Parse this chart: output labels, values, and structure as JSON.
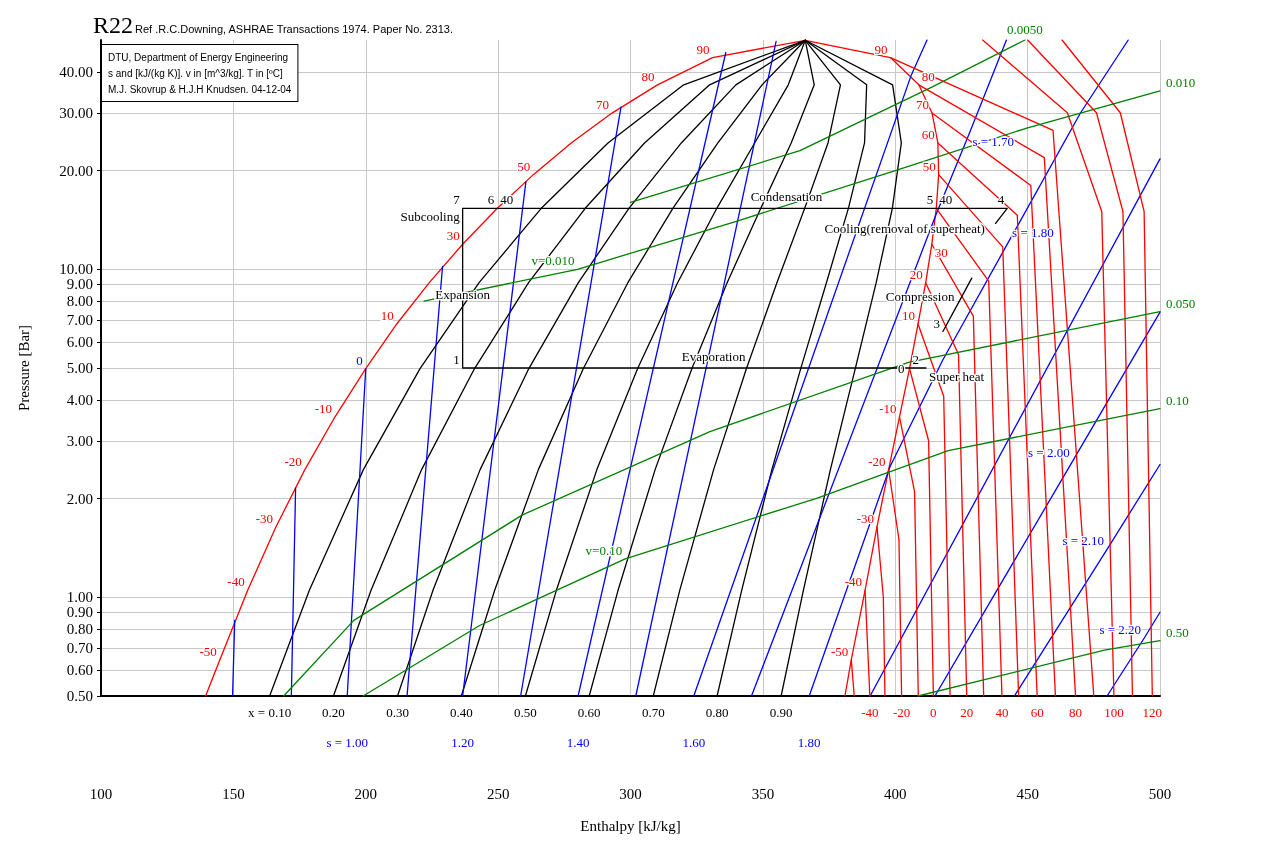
{
  "chart_data": {
    "type": "line",
    "title": "R22",
    "subtitle": "Ref .R.C.Downing, ASHRAE Transactions 1974. Paper No. 2313.",
    "xlabel": "Enthalpy [kJ/kg]",
    "ylabel": "Pressure [Bar]",
    "log": "y",
    "grid": true,
    "xlim": [
      100,
      500
    ],
    "xticks": [
      100,
      150,
      200,
      250,
      300,
      350,
      400,
      450,
      500
    ],
    "ylim": [
      0.5,
      50
    ],
    "yticks": [
      {
        "value": 0.5,
        "label": "0.50"
      },
      {
        "value": 0.6,
        "label": "0.60"
      },
      {
        "value": 0.7,
        "label": "0.70"
      },
      {
        "value": 0.8,
        "label": "0.80"
      },
      {
        "value": 0.9,
        "label": "0.90"
      },
      {
        "value": 1,
        "label": "1.00"
      },
      {
        "value": 2,
        "label": "2.00"
      },
      {
        "value": 3,
        "label": "3.00"
      },
      {
        "value": 4,
        "label": "4.00"
      },
      {
        "value": 5,
        "label": "5.00"
      },
      {
        "value": 6,
        "label": "6.00"
      },
      {
        "value": 7,
        "label": "7.00"
      },
      {
        "value": 8,
        "label": "8.00"
      },
      {
        "value": 9,
        "label": "9.00"
      },
      {
        "value": 10,
        "label": "10.00"
      },
      {
        "value": 20,
        "label": "20.00"
      },
      {
        "value": 30,
        "label": "30.00"
      },
      {
        "value": 40,
        "label": "40.00"
      }
    ],
    "series": [
      {
        "color": "#ff0000",
        "x": [
          139.5,
          144.9,
          155.4,
          166.1,
          177.0,
          188.4,
          200.0,
          211.7,
          224.0,
          236.6,
          249.7,
          263.3,
          277.6,
          293.0,
          310.2,
          331.0,
          366,
          398.2,
          408.9,
          413.9,
          416.1,
          416.4,
          415.5,
          413.8,
          411.5,
          408.6,
          405.4,
          401.6,
          397.5,
          393.1,
          388.6,
          383.4,
          381.0
        ],
        "values": [
          0.5,
          0.645,
          1.05,
          1.64,
          2.45,
          3.55,
          4.98,
          6.81,
          9.1,
          11.92,
          15.34,
          19.43,
          24.27,
          29.93,
          36.5,
          44.2,
          49.9,
          44.2,
          36.5,
          29.93,
          24.27,
          19.43,
          15.34,
          11.92,
          9.1,
          6.81,
          4.98,
          3.55,
          2.45,
          1.64,
          1.05,
          0.645,
          0.5
        ]
      },
      {
        "color": "#000000",
        "x": [
          163.7,
          178.7,
          199.1,
          220.5,
          242.8,
          266.3,
          291.5,
          320.1,
          366
        ],
        "values": [
          0.5,
          1.05,
          2.45,
          4.98,
          9.1,
          15.34,
          24.27,
          36.5,
          49.9
        ]
      },
      {
        "color": "#000000",
        "x": [
          187.8,
          202.0,
          221.1,
          241.1,
          261.5,
          282.9,
          305.3,
          329.9,
          366
        ],
        "values": [
          0.5,
          1.05,
          2.45,
          4.98,
          9.1,
          15.34,
          24.27,
          36.5,
          49.9
        ]
      },
      {
        "color": "#000000",
        "x": [
          212.0,
          225.4,
          243.2,
          261.6,
          280.3,
          299.4,
          319.2,
          339.8,
          366
        ],
        "values": [
          0.5,
          1.05,
          2.45,
          4.98,
          9.1,
          15.34,
          24.27,
          36.5,
          49.9
        ]
      },
      {
        "color": "#000000",
        "x": [
          236.1,
          248.7,
          265.2,
          282.2,
          299.0,
          316.0,
          333.0,
          349.7,
          366
        ],
        "values": [
          0.5,
          1.05,
          2.45,
          4.98,
          9.1,
          15.34,
          24.27,
          36.5,
          49.9
        ]
      },
      {
        "color": "#000000",
        "x": [
          260.3,
          272.0,
          287.3,
          302.7,
          317.8,
          332.6,
          346.9,
          359.6,
          366
        ],
        "values": [
          0.5,
          1.05,
          2.45,
          4.98,
          9.1,
          15.34,
          24.27,
          36.5,
          49.9
        ]
      },
      {
        "color": "#000000",
        "x": [
          284.4,
          295.3,
          309.3,
          323.2,
          336.5,
          349.2,
          360.7,
          369.4,
          366
        ],
        "values": [
          0.5,
          1.05,
          2.45,
          4.98,
          9.1,
          15.34,
          24.27,
          36.5,
          49.9
        ]
      },
      {
        "color": "#000000",
        "x": [
          308.6,
          318.6,
          331.4,
          343.8,
          355.3,
          365.8,
          374.6,
          379.3,
          366
        ],
        "values": [
          0.5,
          1.05,
          2.45,
          4.98,
          9.1,
          15.34,
          24.27,
          36.5,
          49.9
        ]
      },
      {
        "color": "#000000",
        "x": [
          332.7,
          342.0,
          353.4,
          364.3,
          374.0,
          382.3,
          388.4,
          389.2,
          366
        ],
        "values": [
          0.5,
          1.05,
          2.45,
          4.98,
          9.1,
          15.34,
          24.27,
          36.5,
          49.9
        ]
      },
      {
        "color": "#000000",
        "x": [
          356.9,
          365.3,
          375.5,
          384.9,
          392.8,
          398.9,
          402.3,
          399.0,
          366
        ],
        "values": [
          0.5,
          1.05,
          2.45,
          4.98,
          9.1,
          15.34,
          24.27,
          36.5,
          49.9
        ]
      },
      {
        "color": "#0000ff",
        "x": [
          149.7,
          150.5
        ],
        "values": [
          0.5,
          0.85
        ]
      },
      {
        "color": "#0000ff",
        "x": [
          171.9,
          173.5
        ],
        "values": [
          0.5,
          2.15
        ]
      },
      {
        "color": "#0000ff",
        "x": [
          193,
          200
        ],
        "values": [
          0.5,
          4.98
        ]
      },
      {
        "color": "#0000ff",
        "x": [
          215.6,
          229
        ],
        "values": [
          0.5,
          10.2
        ]
      },
      {
        "color": "#0000ff",
        "x": [
          236.6,
          260.5
        ],
        "values": [
          0.5,
          18.5
        ]
      },
      {
        "color": "#0000ff",
        "x": [
          258.5,
          296.4
        ],
        "values": [
          0.5,
          31.2
        ]
      },
      {
        "color": "#0000ff",
        "x": [
          280.2,
          336
        ],
        "values": [
          0.5,
          45.8
        ]
      },
      {
        "color": "#0000ff",
        "x": [
          302,
          355
        ],
        "values": [
          0.5,
          49.5
        ]
      },
      {
        "color": "#0000ff",
        "x": [
          323.9,
          406,
          412
        ],
        "values": [
          0.5,
          39,
          50
        ]
      },
      {
        "color": "#0000ff",
        "x": [
          345.7,
          415.3,
          428,
          442
        ],
        "values": [
          0.5,
          14.6,
          26,
          50
        ]
      },
      {
        "color": "#0000ff",
        "x": [
          367.5,
          398,
          418,
          443,
          470,
          488
        ],
        "values": [
          0.5,
          2.5,
          5.3,
          12.2,
          30,
          50
        ]
      },
      {
        "color": "#0000ff",
        "x": [
          390.5,
          500
        ],
        "values": [
          0.5,
          21.7
        ]
      },
      {
        "color": "#0000ff",
        "x": [
          415,
          467,
          500
        ],
        "values": [
          0.5,
          2.6,
          7.4
        ]
      },
      {
        "color": "#0000ff",
        "x": [
          445,
          480,
          500
        ],
        "values": [
          0.5,
          1.4,
          2.54
        ]
      },
      {
        "color": "#0000ff",
        "x": [
          480,
          494,
          500
        ],
        "values": [
          0.5,
          0.75,
          0.9
        ]
      },
      {
        "color": "#ff0000",
        "x": [
          384.5,
          383.4
        ],
        "values": [
          0.5,
          0.645
        ]
      },
      {
        "color": "#ff0000",
        "x": [
          390.4,
          388.6
        ],
        "values": [
          0.5,
          1.05
        ]
      },
      {
        "color": "#ff0000",
        "x": [
          396.1,
          395.5,
          393.1
        ],
        "values": [
          0.5,
          1.0,
          1.64
        ]
      },
      {
        "color": "#ff0000",
        "x": [
          402.4,
          401.4,
          397.5
        ],
        "values": [
          0.5,
          1.5,
          2.45
        ]
      },
      {
        "color": "#ff0000",
        "x": [
          408.7,
          407.3,
          401.6
        ],
        "values": [
          0.5,
          2.1,
          3.55
        ]
      },
      {
        "color": "#ff0000",
        "x": [
          414.4,
          412.6,
          405.4
        ],
        "values": [
          0.5,
          3.0,
          4.98
        ]
      },
      {
        "color": "#ff0000",
        "x": [
          420.7,
          418.3,
          408.6
        ],
        "values": [
          0.5,
          4.1,
          6.81
        ]
      },
      {
        "color": "#ff0000",
        "x": [
          427.0,
          423.9,
          411.5
        ],
        "values": [
          0.5,
          5.5,
          9.1
        ]
      },
      {
        "color": "#ff0000",
        "x": [
          433.4,
          429.5,
          413.8
        ],
        "values": [
          0.5,
          7.2,
          11.92
        ]
      },
      {
        "color": "#ff0000",
        "x": [
          440.3,
          435.3,
          415.5
        ],
        "values": [
          0.5,
          9.2,
          15.34
        ]
      },
      {
        "color": "#ff0000",
        "x": [
          446.6,
          440.6,
          416.4
        ],
        "values": [
          0.5,
          11.7,
          19.43
        ]
      },
      {
        "color": "#ff0000",
        "x": [
          453.6,
          446.1,
          416.1
        ],
        "values": [
          0.5,
          14.6,
          24.27
        ]
      },
      {
        "color": "#ff0000",
        "x": [
          460.5,
          451.2,
          413.9
        ],
        "values": [
          0.5,
          18,
          29.93
        ]
      },
      {
        "color": "#ff0000",
        "x": [
          468.1,
          456.3,
          408.9
        ],
        "values": [
          0.5,
          21.9,
          36.5
        ]
      },
      {
        "color": "#ff0000",
        "x": [
          475.0,
          459.6,
          398.2
        ],
        "values": [
          0.5,
          26.5,
          44.2
        ]
      },
      {
        "color": "#ff0000",
        "x": [
          482.6,
          478,
          465,
          433
        ],
        "values": [
          0.5,
          15,
          30,
          50
        ]
      },
      {
        "color": "#ff0000",
        "x": [
          489.6,
          486,
          476,
          450
        ],
        "values": [
          0.5,
          15,
          30,
          50
        ]
      },
      {
        "color": "#ff0000",
        "x": [
          497.1,
          494,
          485,
          463
        ],
        "values": [
          0.5,
          15,
          30,
          50
        ]
      },
      {
        "color": "#008000",
        "x": [
          300,
          364,
          414,
          449
        ],
        "values": [
          16,
          23,
          36,
          50
        ]
      },
      {
        "color": "#008000",
        "x": [
          222,
          280,
          340,
          400,
          450,
          500
        ],
        "values": [
          8,
          10,
          14,
          20,
          27,
          35
        ]
      },
      {
        "color": "#008000",
        "x": [
          169,
          195.5,
          259,
          330,
          405,
          500
        ],
        "values": [
          0.5,
          0.85,
          1.78,
          3.2,
          5.2,
          7.43
        ]
      },
      {
        "color": "#008000",
        "x": [
          199,
          243,
          298,
          370,
          420,
          500
        ],
        "values": [
          0.5,
          0.82,
          1.31,
          2.0,
          2.8,
          3.76
        ]
      },
      {
        "color": "#008000",
        "x": [
          408.6,
          479,
          500
        ],
        "values": [
          0.5,
          0.69,
          0.737
        ]
      },
      {
        "color": "#000000",
        "x": [
          411.6,
          405.4,
          331.4,
          236.6,
          236.6,
          236.6,
          249.7,
          358.9,
          415.5,
          435,
          442.3,
          437.9,
          430,
          418,
          423.5,
          428.9
        ],
        "values": [
          5,
          5,
          5,
          5,
          9.1,
          15.34,
          15.34,
          15.34,
          15.34,
          15.34,
          15.34,
          13.8,
          null,
          6.46,
          7.8,
          9.4
        ]
      }
    ],
    "annotations": [
      "DTU, Department of Energy Engineering",
      "s and [kJ/(kg K)]. v in [m^3/kg]. T in [ºC]",
      "M.J. Skovrup & H.J.H Knudsen. 04-12-04",
      {
        "text": "x = 0.10",
        "x": 163.7,
        "y": 0.5
      },
      {
        "text": "0.20",
        "x": 187.8,
        "y": 0.5
      },
      {
        "text": "0.30",
        "x": 212.0,
        "y": 0.5
      },
      {
        "text": "0.40",
        "x": 236.1,
        "y": 0.5
      },
      {
        "text": "0.50",
        "x": 260.3,
        "y": 0.5
      },
      {
        "text": "0.60",
        "x": 284.4,
        "y": 0.5
      },
      {
        "text": "0.70",
        "x": 308.6,
        "y": 0.5
      },
      {
        "text": "0.80",
        "x": 332.7,
        "y": 0.5
      },
      {
        "text": "0.90",
        "x": 356.9,
        "y": 0.5
      },
      {
        "text": "-40",
        "x": 390.4,
        "y": 0.5
      },
      {
        "text": "-20",
        "x": 402.4,
        "y": 0.5
      },
      {
        "text": "0",
        "x": 414.4,
        "y": 0.5
      },
      {
        "text": "20",
        "x": 427.0,
        "y": 0.5
      },
      {
        "text": "40",
        "x": 440.3,
        "y": 0.5
      },
      {
        "text": "60",
        "x": 453.6,
        "y": 0.5
      },
      {
        "text": "80",
        "x": 468.1,
        "y": 0.5
      },
      {
        "text": "100",
        "x": 482.6,
        "y": 0.5
      },
      {
        "text": "120",
        "x": 497.1,
        "y": 0.5
      },
      {
        "text": "s = 1.00",
        "x": 193,
        "y": 0.5
      },
      {
        "text": "1.20",
        "x": 236.6,
        "y": 0.5
      },
      {
        "text": "1.40",
        "x": 280.2,
        "y": 0.5
      },
      {
        "text": "1.60",
        "x": 323.9,
        "y": 0.5
      },
      {
        "text": "1.80",
        "x": 367.5,
        "y": 0.5
      },
      {
        "text": "1",
        "x": 236.6,
        "y": 5
      },
      {
        "text": "2",
        "x": 405.4,
        "y": 5
      },
      {
        "text": "3",
        "x": 418,
        "y": 6.46
      },
      {
        "text": "4",
        "x": 442.3,
        "y": 15.34
      },
      {
        "text": "5",
        "x": 415.5,
        "y": 15.34
      },
      {
        "text": "6",
        "x": 249.7,
        "y": 15.34
      },
      {
        "text": "7",
        "x": 236.6,
        "y": 15.34
      },
      {
        "text": "Subcooling",
        "x": 236.6,
        "y": 15.34
      },
      {
        "text": "Condensation",
        "x": 358.9,
        "y": 15.34
      },
      {
        "text": "Cooling(removal of superheat)",
        "x": 435,
        "y": 15.34
      },
      {
        "text": "Evaporation",
        "x": 331.4,
        "y": 5
      },
      {
        "text": "Expansion",
        "x": 236.6,
        "y": 9.1
      },
      {
        "text": "Compression",
        "x": 423.5,
        "y": 7.8
      },
      {
        "text": "Super heat",
        "x": 411.6,
        "y": 5
      },
      {
        "text": "-50",
        "x": 144.9,
        "y": 0.645
      },
      {
        "text": "-40",
        "x": 155.4,
        "y": 1.05
      },
      {
        "text": "-30",
        "x": 166.1,
        "y": 1.64
      },
      {
        "text": "-20",
        "x": 177.0,
        "y": 2.45
      },
      {
        "text": "-10",
        "x": 188.4,
        "y": 3.55
      },
      {
        "text": "0",
        "x": 200.0,
        "y": 4.98
      },
      {
        "text": "10",
        "x": 211.7,
        "y": 6.81
      },
      {
        "text": "30",
        "x": 236.6,
        "y": 11.92
      },
      {
        "text": "40",
        "x": 249.7,
        "y": 15.34
      },
      {
        "text": "50",
        "x": 263.3,
        "y": 19.43
      },
      {
        "text": "70",
        "x": 293.0,
        "y": 29.93
      },
      {
        "text": "80",
        "x": 310.2,
        "y": 36.5
      },
      {
        "text": "90",
        "x": 331.0,
        "y": 44.2
      },
      {
        "text": "90",
        "x": 398.2,
        "y": 44.2
      },
      {
        "text": "80",
        "x": 408.9,
        "y": 36.5
      },
      {
        "text": "70",
        "x": 413.9,
        "y": 29.93
      },
      {
        "text": "60",
        "x": 416.1,
        "y": 24.27
      },
      {
        "text": "50",
        "x": 416.4,
        "y": 19.43
      },
      {
        "text": "40",
        "x": 415.5,
        "y": 15.34
      },
      {
        "text": "30",
        "x": 413.8,
        "y": 11.92
      },
      {
        "text": "20",
        "x": 411.5,
        "y": 9.1
      },
      {
        "text": "10",
        "x": 408.6,
        "y": 6.81
      },
      {
        "text": "0",
        "x": 405.4,
        "y": 4.98
      },
      {
        "text": "-10",
        "x": 401.6,
        "y": 3.55
      },
      {
        "text": "-20",
        "x": 397.5,
        "y": 2.45
      },
      {
        "text": "-30",
        "x": 393.1,
        "y": 1.64
      },
      {
        "text": "-40",
        "x": 388.6,
        "y": 1.05
      },
      {
        "text": "-50",
        "x": 383.4,
        "y": 0.645
      },
      {
        "text": "s = 1.70",
        "x": 428,
        "y": 26
      },
      {
        "text": "s = 1.80",
        "x": 443,
        "y": 12.2
      },
      {
        "text": "s = 2.00",
        "x": 467,
        "y": 2.6
      },
      {
        "text": "s = 2.10",
        "x": 480,
        "y": 1.4
      },
      {
        "text": "s = 2.20",
        "x": 494,
        "y": 0.75
      },
      {
        "text": "v=0.010",
        "x": 280,
        "y": 10
      },
      {
        "text": "v=0.10",
        "x": 298,
        "y": 1.31
      },
      {
        "text": "0.0050",
        "x": 449,
        "y": 50
      },
      {
        "text": "0.010",
        "x": 500,
        "y": 35
      },
      {
        "text": "0.050",
        "x": 500,
        "y": 7.43
      },
      {
        "text": "0.10",
        "x": 500,
        "y": 3.76
      },
      {
        "text": "0.50",
        "x": 500,
        "y": 0.737
      }
    ]
  }
}
